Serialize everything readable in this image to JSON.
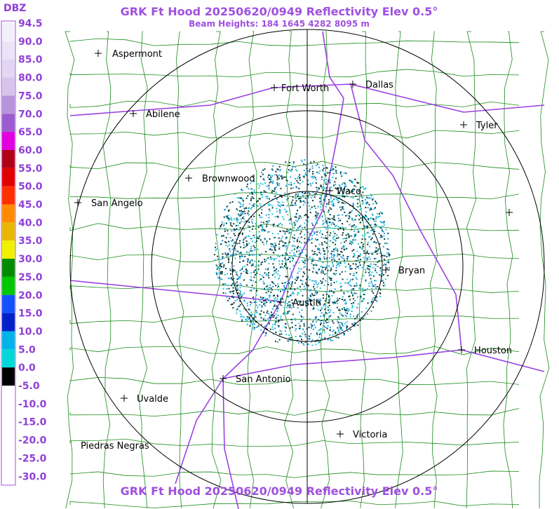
{
  "header": {
    "title": "GRK Ft Hood 20250620/0949 Reflectivity Elev 0.5°",
    "subtitle": "Beam Heights: 184 1645 4282 8095 m"
  },
  "legend": {
    "unit": "DBZ",
    "labels": [
      "94.5",
      "90.0",
      "85.0",
      "80.0",
      "75.0",
      "70.0",
      "65.0",
      "60.0",
      "55.0",
      "50.0",
      "45.0",
      "40.0",
      "35.0",
      "30.0",
      "25.0",
      "20.0",
      "15.0",
      "10.0",
      "5.0",
      "0.0",
      "-5.0",
      "-10.0",
      "-15.0",
      "-20.0",
      "-25.0",
      "-30.0"
    ],
    "colors": [
      "#f4f0fa",
      "#ece4f6",
      "#e2d6f2",
      "#d6c4ec",
      "#b894dc",
      "#9c5cd0",
      "#e000e0",
      "#b00018",
      "#e00000",
      "#ff3000",
      "#ff8c00",
      "#e8b800",
      "#f0f000",
      "#008c00",
      "#00c800",
      "#1450ff",
      "#0020c8",
      "#00b4e8",
      "#00d8d8",
      "#000000",
      "#ffffff",
      "#ffffff",
      "#ffffff",
      "#ffffff",
      "#ffffff"
    ]
  },
  "cities": [
    {
      "label": "Aspermont"
    },
    {
      "label": "Abilene"
    },
    {
      "label": "Fort Worth"
    },
    {
      "label": "Dallas"
    },
    {
      "label": "Tyler"
    },
    {
      "label": "Brownwood"
    },
    {
      "label": "Waco"
    },
    {
      "label": "San Angelo"
    },
    {
      "label": "Bryan"
    },
    {
      "label": "Austin"
    },
    {
      "label": "Houston"
    },
    {
      "label": "San Antonio"
    },
    {
      "label": "Uvalde"
    },
    {
      "label": "Victoria"
    },
    {
      "label": "Piedras Negras"
    }
  ],
  "footer": {
    "title": "GRK Ft Hood 20250620/0949 Reflectivity Elev 0.5°"
  }
}
